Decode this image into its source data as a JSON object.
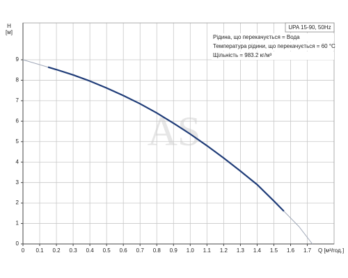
{
  "chart_data": {
    "type": "line",
    "ylabel": "H",
    "yunit": "[м]",
    "xlabel": "Q [м³/год.]",
    "legend_title": "UPA 15-90, 50Hz",
    "annotations": [
      "Рідина, що перекачується = Вода",
      "Температура рідини, що перекачується = 60 °C",
      "Щільність = 983.2 кг/м³"
    ],
    "watermark": "AS",
    "xlim": [
      0,
      1.86
    ],
    "ylim": [
      0,
      10.8
    ],
    "xticks": [
      0,
      0.1,
      0.2,
      0.3,
      0.4,
      0.5,
      0.6,
      0.7,
      0.8,
      0.9,
      {
        "value": 1,
        "label": "1.0"
      },
      1.1,
      1.2,
      1.3,
      1.4,
      1.5,
      1.6,
      1.7
    ],
    "yticks": [
      0,
      1,
      2,
      3,
      4,
      5,
      6,
      7,
      8,
      9
    ],
    "grid": true,
    "series": [
      {
        "color": "#a0a8b8",
        "width": 1,
        "x": [
          0,
          0.15
        ],
        "values": [
          9,
          8.64
        ]
      },
      {
        "color": "#1f3c78",
        "width": 2.2,
        "x": [
          0.15,
          0.2,
          0.3,
          0.4,
          0.5,
          0.6,
          0.7,
          0.8,
          0.9,
          1.0,
          1.1,
          1.2,
          1.3,
          1.4,
          1.5,
          1.56
        ],
        "values": [
          8.64,
          8.52,
          8.26,
          7.96,
          7.62,
          7.25,
          6.85,
          6.4,
          5.9,
          5.37,
          4.8,
          4.2,
          3.56,
          2.9,
          2.1,
          1.6
        ]
      },
      {
        "color": "#a0a8b8",
        "width": 1,
        "x": [
          1.56,
          1.65,
          1.73
        ],
        "values": [
          1.6,
          0.85,
          0
        ]
      }
    ]
  }
}
